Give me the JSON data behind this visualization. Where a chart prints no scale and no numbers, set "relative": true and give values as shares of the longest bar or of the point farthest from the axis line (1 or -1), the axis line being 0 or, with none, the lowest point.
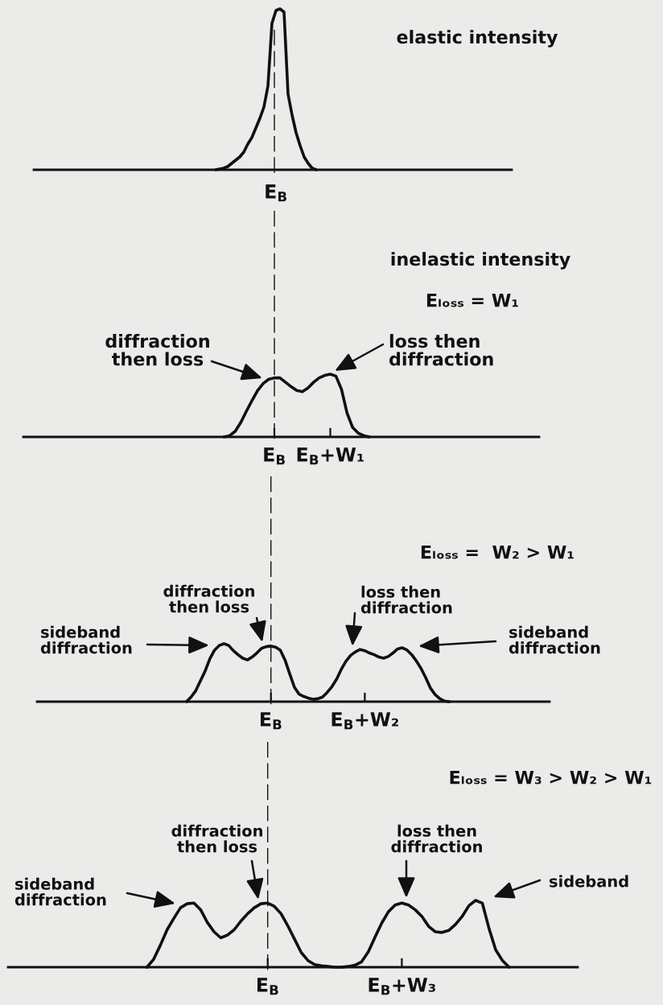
{
  "chart_data": [
    {
      "type": "line",
      "relative": true,
      "color": "#111111",
      "categories": [
        null,
        null,
        null,
        null,
        null,
        null,
        null,
        null,
        null,
        null,
        null,
        null,
        null,
        null,
        null,
        null,
        null,
        null,
        null,
        null,
        null,
        null,
        null,
        null,
        null,
        null
      ],
      "values": [
        0,
        0.005,
        0.01,
        0.02,
        0.04,
        0.06,
        0.08,
        0.11,
        0.16,
        0.2,
        0.26,
        0.32,
        0.39,
        0.52,
        0.91,
        0.99,
        1,
        0.98,
        0.47,
        0.34,
        0.23,
        0.15,
        0.08,
        0.04,
        0.01,
        0
      ],
      "annotations": [
        "elastic intensity",
        "E$_{B}$"
      ]
    },
    {
      "type": "line",
      "relative": true,
      "color": "#111111",
      "categories": [
        null,
        null,
        null,
        null,
        null,
        null,
        null,
        null,
        null,
        "E$_{B}$",
        null,
        null,
        null,
        null,
        null,
        null,
        null,
        null,
        null,
        "E$_{B}$+W₁",
        null,
        null,
        null,
        null,
        null,
        null,
        null
      ],
      "values": [
        0,
        0.02,
        0.09,
        0.23,
        0.41,
        0.58,
        0.74,
        0.85,
        0.92,
        0.94,
        0.94,
        0.87,
        0.8,
        0.74,
        0.72,
        0.78,
        0.87,
        0.94,
        0.98,
        1,
        0.97,
        0.76,
        0.38,
        0.15,
        0.06,
        0.02,
        0
      ],
      "ref_lines": [
        {
          "axis": "x",
          "value": "E$_{B}$",
          "line_style": "dashed"
        }
      ],
      "annotations": [
        "inelastic intensity",
        "Eₗₒₛₛ = W₁",
        "diffraction\nthen loss",
        "loss then\ndiffraction"
      ]
    },
    {
      "type": "line",
      "title": "Eₗₒₛₛ =  W₂ > W₁",
      "relative": true,
      "color": "#111111",
      "categories": [
        null,
        null,
        null,
        null,
        null,
        null,
        null,
        null,
        null,
        null,
        null,
        null,
        null,
        null,
        null,
        null,
        null,
        null,
        "E$_{B}$",
        null,
        null,
        null,
        null,
        null,
        null,
        null,
        null,
        null,
        null,
        null,
        null,
        null,
        null,
        null,
        null,
        null,
        null,
        null,
        "E$_{B}$+W₂",
        null,
        null,
        null,
        null,
        null,
        null,
        null,
        null,
        null,
        null,
        null,
        null,
        null,
        null,
        null,
        null,
        null,
        null
      ],
      "values": [
        0,
        0.08,
        0.19,
        0.36,
        0.53,
        0.74,
        0.89,
        0.97,
        1,
        0.97,
        0.88,
        0.81,
        0.75,
        0.72,
        0.77,
        0.84,
        0.92,
        0.95,
        0.96,
        0.94,
        0.89,
        0.72,
        0.48,
        0.25,
        0.13,
        0.09,
        0.06,
        0.04,
        0.05,
        0.08,
        0.16,
        0.26,
        0.39,
        0.56,
        0.7,
        0.8,
        0.86,
        0.9,
        0.88,
        0.84,
        0.81,
        0.77,
        0.75,
        0.78,
        0.84,
        0.91,
        0.93,
        0.89,
        0.81,
        0.7,
        0.57,
        0.41,
        0.23,
        0.12,
        0.05,
        0.01,
        0
      ],
      "ref_lines": [
        {
          "axis": "x",
          "value": "E$_{B}$",
          "line_style": "dashed"
        }
      ],
      "annotations": [
        "sideband\ndiffraction",
        "diffraction\nthen loss",
        "loss then\ndiffraction",
        "sideband\ndiffraction"
      ]
    },
    {
      "type": "line",
      "title": "Eₗₒₛₛ = W₃ > W₂ > W₁",
      "relative": true,
      "color": "#111111",
      "categories": [
        null,
        null,
        null,
        null,
        null,
        null,
        null,
        null,
        null,
        null,
        null,
        null,
        null,
        null,
        null,
        null,
        null,
        null,
        "E$_{B}$",
        null,
        null,
        null,
        null,
        null,
        null,
        null,
        null,
        null,
        null,
        null,
        null,
        null,
        null,
        null,
        null,
        null,
        null,
        null,
        "E$_{B}$+W₃",
        null,
        null,
        null,
        null,
        null,
        null,
        null,
        null,
        null,
        null,
        null,
        null,
        null,
        null,
        null,
        null
      ],
      "values": [
        0,
        0.12,
        0.33,
        0.56,
        0.73,
        0.89,
        0.95,
        0.96,
        0.86,
        0.67,
        0.53,
        0.44,
        0.48,
        0.56,
        0.69,
        0.8,
        0.89,
        0.95,
        0.96,
        0.91,
        0.8,
        0.62,
        0.42,
        0.22,
        0.1,
        0.04,
        0.02,
        0.01,
        0,
        0,
        0.01,
        0.03,
        0.08,
        0.23,
        0.45,
        0.66,
        0.83,
        0.93,
        0.96,
        0.93,
        0.86,
        0.76,
        0.61,
        0.53,
        0.52,
        0.55,
        0.64,
        0.76,
        0.92,
        1,
        0.96,
        0.58,
        0.26,
        0.1,
        0
      ],
      "ref_lines": [
        {
          "axis": "x",
          "value": "E$_{B}$",
          "line_style": "dashed"
        }
      ],
      "annotations": [
        "sideband\ndiffraction",
        "diffraction\nthen loss",
        "loss then\ndiffraction",
        "sideband"
      ]
    }
  ]
}
